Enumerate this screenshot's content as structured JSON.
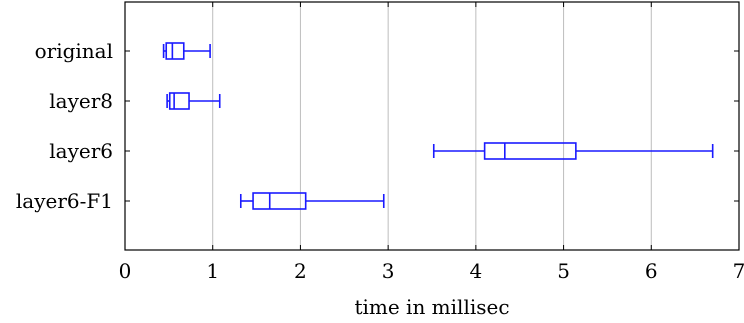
{
  "chart_data": {
    "type": "boxplot",
    "orientation": "horizontal",
    "categories": [
      "original",
      "layer8",
      "layer6",
      "layer6-F1"
    ],
    "series": [
      {
        "boxes": [
          {
            "category": "original",
            "whisker_low": 0.44,
            "q1": 0.47,
            "median": 0.54,
            "q3": 0.67,
            "whisker_high": 0.97
          },
          {
            "category": "layer8",
            "whisker_low": 0.48,
            "q1": 0.51,
            "median": 0.56,
            "q3": 0.73,
            "whisker_high": 1.08
          },
          {
            "category": "layer6",
            "whisker_low": 3.52,
            "q1": 4.1,
            "median": 4.33,
            "q3": 5.14,
            "whisker_high": 6.7
          },
          {
            "category": "layer6-F1",
            "whisker_low": 1.32,
            "q1": 1.46,
            "median": 1.65,
            "q3": 2.06,
            "whisker_high": 2.95
          }
        ]
      }
    ],
    "xlabel": "time in millisec",
    "ylabel": "",
    "xlim": [
      0,
      7
    ],
    "xticks": [
      0,
      1,
      2,
      3,
      4,
      5,
      6,
      7
    ],
    "grid": "vertical",
    "legend": "none",
    "colors": {
      "box": "#1a1aff",
      "grid": "#bdbdbd",
      "axis": "#000000"
    }
  }
}
